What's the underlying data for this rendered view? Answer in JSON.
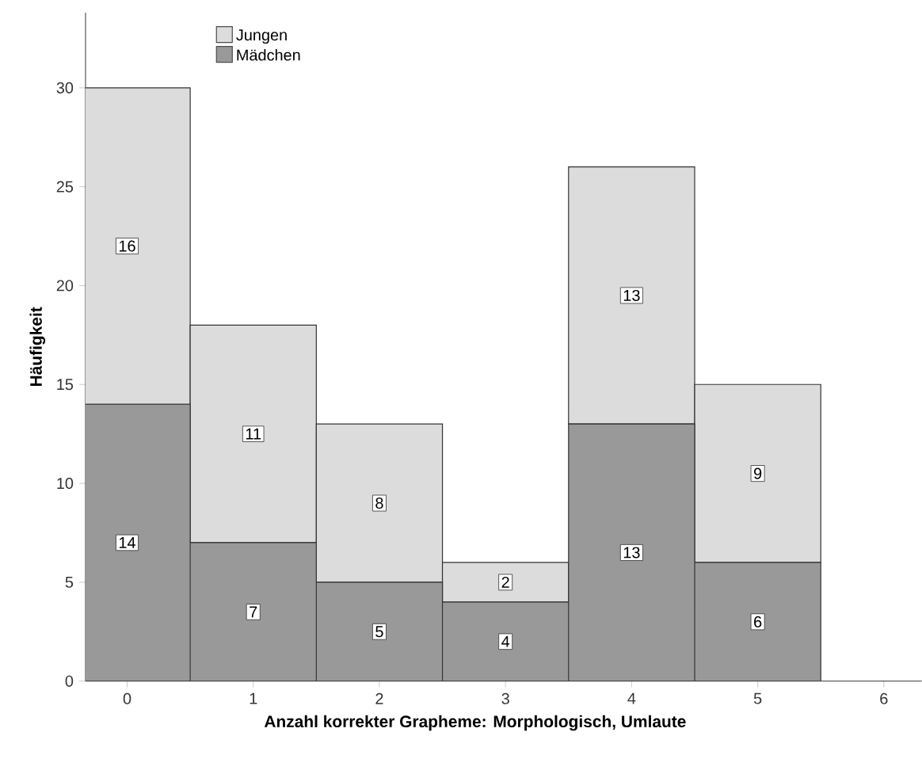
{
  "chart_data": {
    "type": "bar",
    "stacked": true,
    "xlabel": "Anzahl korrekter Grapheme: Morphologisch, Umlaute",
    "ylabel": "Häufigkeit",
    "x": [
      0,
      1,
      2,
      3,
      4,
      5
    ],
    "series": [
      {
        "name": "Mädchen",
        "color": "#999999",
        "values": [
          14,
          7,
          5,
          4,
          13,
          6
        ]
      },
      {
        "name": "Jungen",
        "color": "#dcdcdc",
        "values": [
          16,
          11,
          8,
          2,
          13,
          9
        ]
      }
    ],
    "xlim": [
      -0.33,
      6.3
    ],
    "ylim": [
      0,
      33.8
    ],
    "xticks": [
      0,
      1,
      2,
      3,
      4,
      5,
      6
    ],
    "yticks": [
      0,
      5,
      10,
      15,
      20,
      25,
      30
    ],
    "data_labels": true,
    "legend": "top left",
    "grid": false
  }
}
